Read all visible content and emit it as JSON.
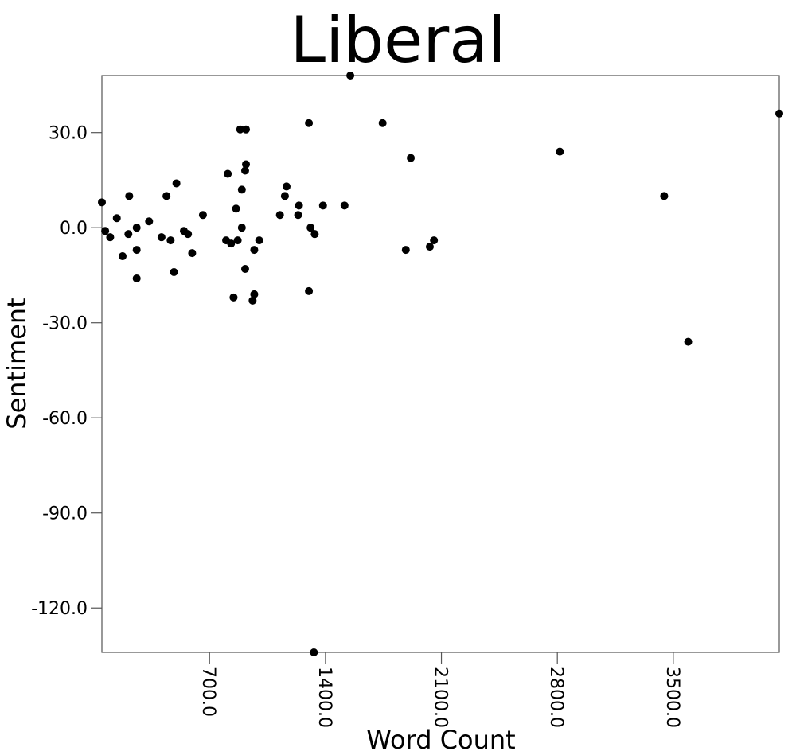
{
  "chart_data": {
    "type": "scatter",
    "title": "Liberal",
    "xlabel": "Word Count",
    "ylabel": "Sentiment",
    "xlim": [
      50,
      4140
    ],
    "ylim": [
      -134,
      48
    ],
    "xticks": [
      700,
      1400,
      2100,
      2800,
      3500
    ],
    "xtick_labels": [
      "700.0",
      "1400.0",
      "2100.0",
      "2800.0",
      "3500.0"
    ],
    "yticks": [
      30,
      0,
      -30,
      -60,
      -90,
      -120
    ],
    "ytick_labels": [
      "30.0",
      "0.0",
      "-30.0",
      "-60.0",
      "-90.0",
      "-120.0"
    ],
    "grid": false,
    "legend": "none",
    "marker_color": "#000000",
    "series": [
      {
        "points": [
          {
            "x": 50,
            "y": 8
          },
          {
            "x": 70,
            "y": -1
          },
          {
            "x": 100,
            "y": -3
          },
          {
            "x": 140,
            "y": 3
          },
          {
            "x": 175,
            "y": -9
          },
          {
            "x": 215,
            "y": 10
          },
          {
            "x": 210,
            "y": -2
          },
          {
            "x": 260,
            "y": 0
          },
          {
            "x": 260,
            "y": -7
          },
          {
            "x": 260,
            "y": -16
          },
          {
            "x": 335,
            "y": 2
          },
          {
            "x": 410,
            "y": -3
          },
          {
            "x": 440,
            "y": 10
          },
          {
            "x": 465,
            "y": -4
          },
          {
            "x": 485,
            "y": -14
          },
          {
            "x": 500,
            "y": 14
          },
          {
            "x": 545,
            "y": -1
          },
          {
            "x": 570,
            "y": -2
          },
          {
            "x": 595,
            "y": -8
          },
          {
            "x": 660,
            "y": 4
          },
          {
            "x": 800,
            "y": -4
          },
          {
            "x": 810,
            "y": 17
          },
          {
            "x": 830,
            "y": -5
          },
          {
            "x": 845,
            "y": -22
          },
          {
            "x": 860,
            "y": 6
          },
          {
            "x": 870,
            "y": -4
          },
          {
            "x": 885,
            "y": 31
          },
          {
            "x": 895,
            "y": 12
          },
          {
            "x": 895,
            "y": 0
          },
          {
            "x": 915,
            "y": 18
          },
          {
            "x": 920,
            "y": 20
          },
          {
            "x": 920,
            "y": 31
          },
          {
            "x": 915,
            "y": -13
          },
          {
            "x": 960,
            "y": -23
          },
          {
            "x": 970,
            "y": -21
          },
          {
            "x": 970,
            "y": -7
          },
          {
            "x": 1000,
            "y": -4
          },
          {
            "x": 1125,
            "y": 4
          },
          {
            "x": 1155,
            "y": 10
          },
          {
            "x": 1165,
            "y": 13
          },
          {
            "x": 1235,
            "y": 4
          },
          {
            "x": 1240,
            "y": 7
          },
          {
            "x": 1300,
            "y": 33
          },
          {
            "x": 1300,
            "y": -20
          },
          {
            "x": 1310,
            "y": 0
          },
          {
            "x": 1335,
            "y": -2
          },
          {
            "x": 1330,
            "y": -134
          },
          {
            "x": 1385,
            "y": 7
          },
          {
            "x": 1515,
            "y": 7
          },
          {
            "x": 1550,
            "y": 48
          },
          {
            "x": 1745,
            "y": 33
          },
          {
            "x": 1885,
            "y": -7
          },
          {
            "x": 1915,
            "y": 22
          },
          {
            "x": 2030,
            "y": -6
          },
          {
            "x": 2055,
            "y": -4
          },
          {
            "x": 2815,
            "y": 24
          },
          {
            "x": 3445,
            "y": 10
          },
          {
            "x": 3590,
            "y": -36
          },
          {
            "x": 4140,
            "y": 36
          }
        ]
      }
    ]
  }
}
